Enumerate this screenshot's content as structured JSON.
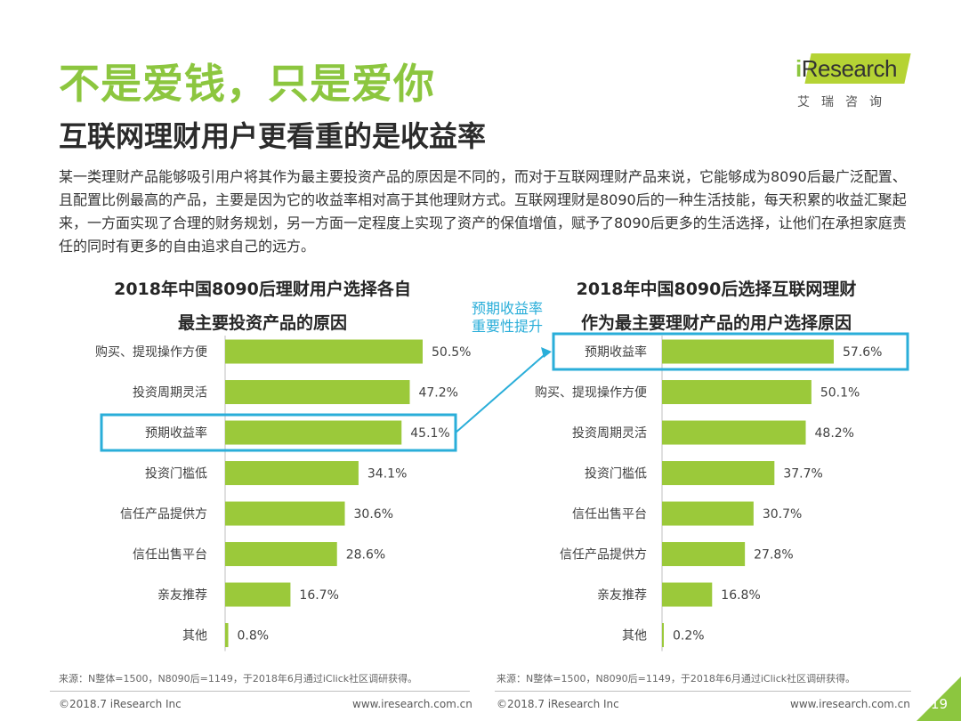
{
  "header": {
    "title": "不是爱钱，只是爱你",
    "subtitle": "互联网理财用户更看重的是收益率"
  },
  "logo": {
    "prefix": "i",
    "name": "Research",
    "chinese": "艾瑞咨询"
  },
  "intro": "某一类理财产品能够吸引用户将其作为最主要投资产品的原因是不同的，而对于互联网理财产品来说，它能够成为8090后最广泛配置、且配置比例最高的产品，主要是因为它的收益率相对高于其他理财方式。互联网理财是8090后的一种生活技能，每天积累的收益汇聚起来，一方面实现了合理的财务规划，另一方面一定程度上实现了资产的保值增值，赋予了8090后更多的生活选择，让他们在承担家庭责任的同时有更多的自由追求自己的远方。",
  "callout": {
    "line1": "预期收益率",
    "line2": "重要性提升"
  },
  "colors": {
    "bar": "#9bc93a",
    "highlight": "#2aaed9",
    "title_green": "#8cc63f"
  },
  "chart_data": [
    {
      "type": "bar",
      "orientation": "horizontal",
      "title_line1": "2018年中国8090后理财用户选择各自",
      "title_line2": "最主要投资产品的原因",
      "categories": [
        "购买、提现操作方便",
        "投资周期灵活",
        "预期收益率",
        "投资门槛低",
        "信任产品提供方",
        "信任出售平台",
        "亲友推荐",
        "其他"
      ],
      "values": [
        50.5,
        47.2,
        45.1,
        34.1,
        30.6,
        28.6,
        16.7,
        0.8
      ],
      "value_labels": [
        "50.5%",
        "47.2%",
        "45.1%",
        "34.1%",
        "30.6%",
        "28.6%",
        "16.7%",
        "0.8%"
      ],
      "highlight": "预期收益率",
      "xlim": [
        0,
        60
      ],
      "unit": "%"
    },
    {
      "type": "bar",
      "orientation": "horizontal",
      "title_line1": "2018年中国8090后选择互联网理财",
      "title_line2": "作为最主要理财产品的用户选择原因",
      "categories": [
        "预期收益率",
        "购买、提现操作方便",
        "投资周期灵活",
        "投资门槛低",
        "信任出售平台",
        "信任产品提供方",
        "亲友推荐",
        "其他"
      ],
      "values": [
        57.6,
        50.1,
        48.2,
        37.7,
        30.7,
        27.8,
        16.8,
        0.2
      ],
      "value_labels": [
        "57.6%",
        "50.1%",
        "48.2%",
        "37.7%",
        "30.7%",
        "27.8%",
        "16.8%",
        "0.2%"
      ],
      "highlight": "预期收益率",
      "xlim": [
        0,
        60
      ],
      "unit": "%"
    }
  ],
  "footer": {
    "source_left": "来源：N整体=1500，N8090后=1149，于2018年6月通过iClick社区调研获得。",
    "source_right": "来源：N整体=1500，N8090后=1149，于2018年6月通过iClick社区调研获得。",
    "copyright_left": "©2018.7 iResearch Inc",
    "url_left": "www.iresearch.com.cn",
    "copyright_right": "©2018.7 iResearch Inc",
    "url_right": "www.iresearch.com.cn",
    "page_number": "19"
  }
}
